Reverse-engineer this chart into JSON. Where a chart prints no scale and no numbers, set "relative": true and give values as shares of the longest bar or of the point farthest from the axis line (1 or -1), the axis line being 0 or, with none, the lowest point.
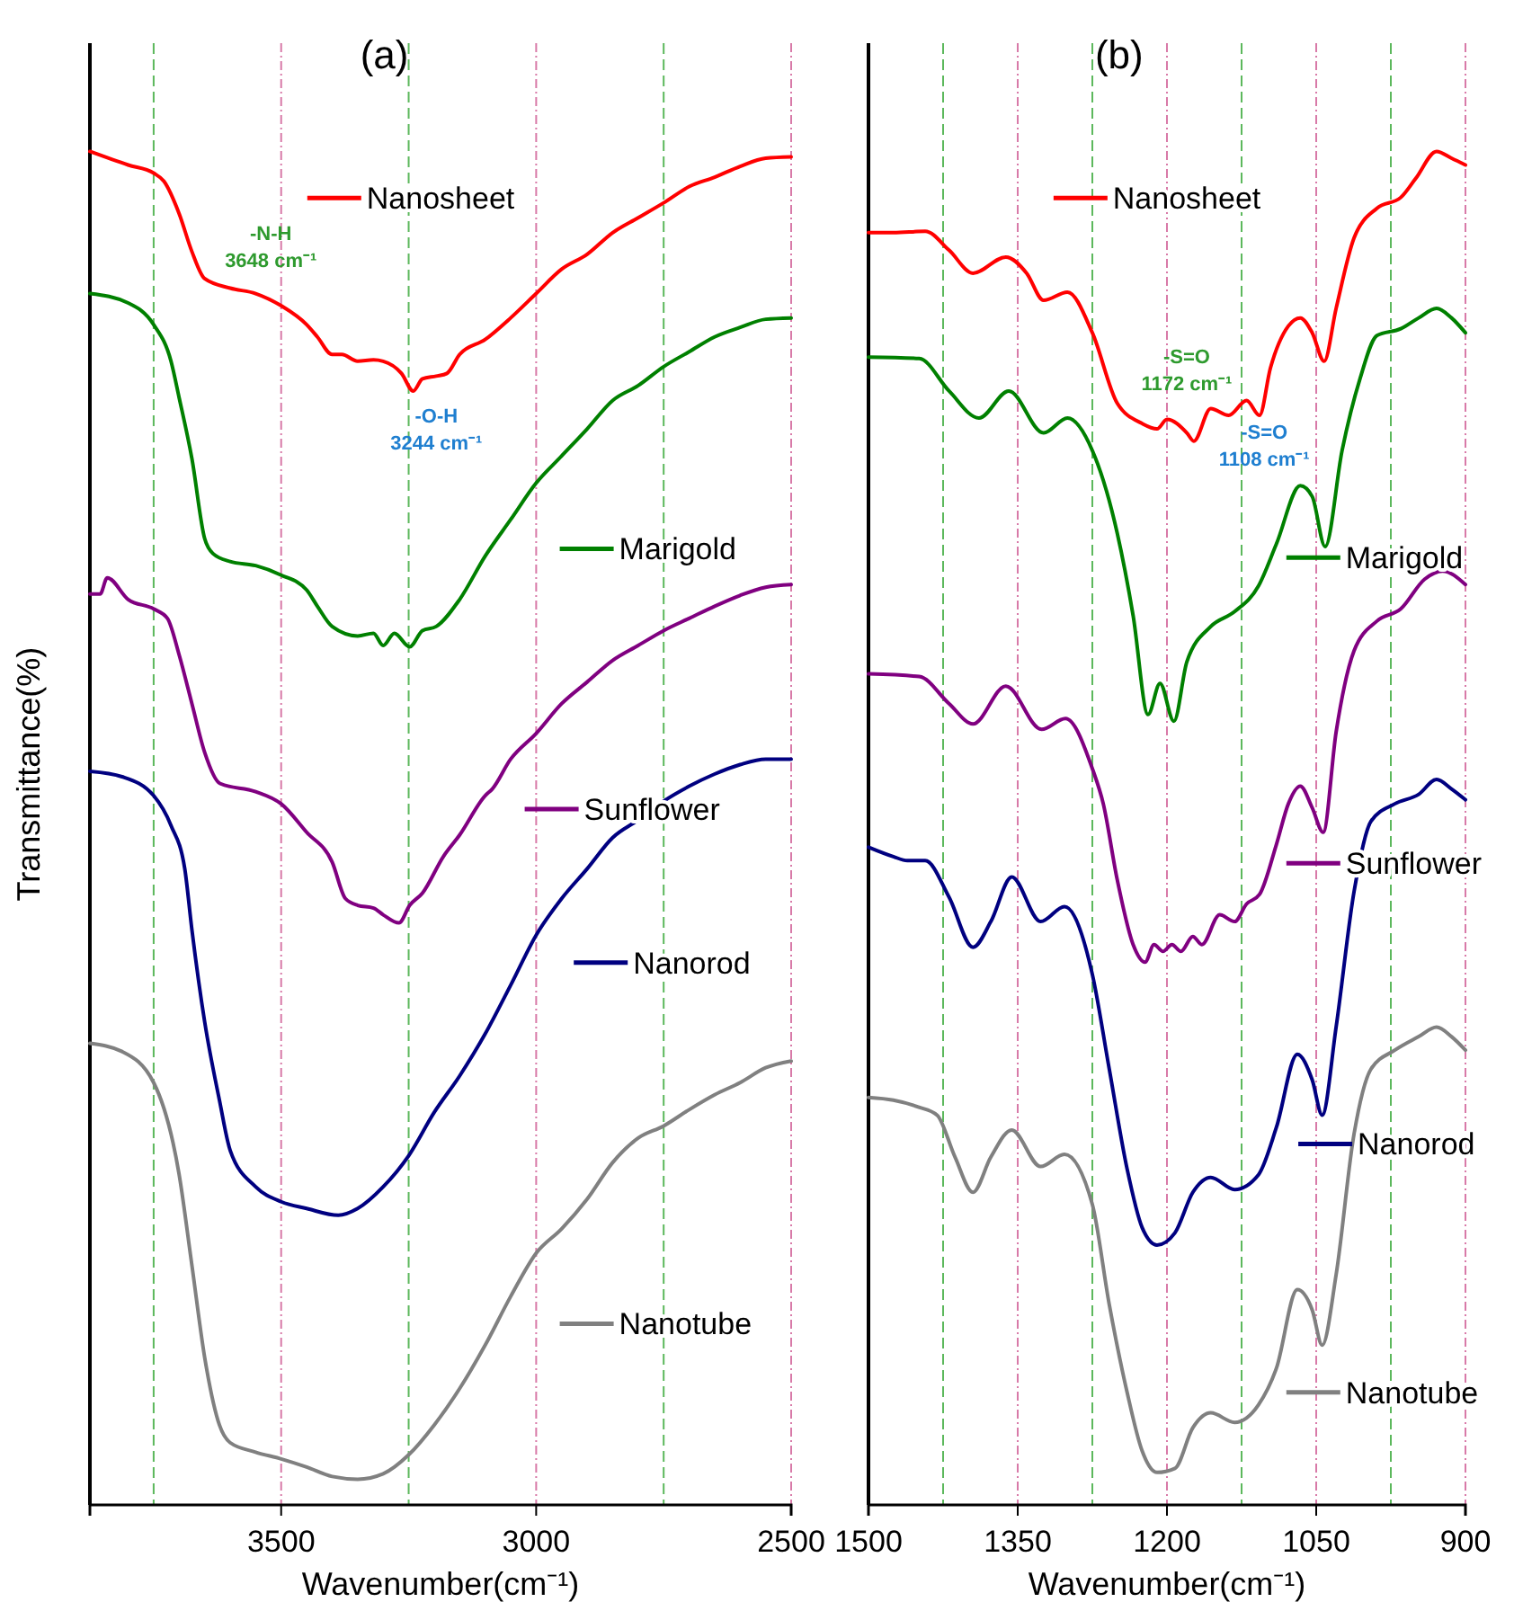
{
  "chart_data": [
    {
      "type": "line",
      "title": "(a)",
      "xlabel": "Wavenumber(cm⁻¹)",
      "ylabel": "Transmittance(%)",
      "relative": true,
      "tick_labels": "x",
      "grid": "x",
      "line_style": "solid",
      "xlim": [
        3875,
        2500
      ],
      "xticks": [
        3500,
        3000,
        2500
      ],
      "ref_lines": [
        {
          "axis": "x",
          "value": 3750,
          "color": "#5cb85c",
          "line_style": "dashed"
        },
        {
          "axis": "x",
          "value": 3250,
          "color": "#5cb85c",
          "line_style": "dashed"
        },
        {
          "axis": "x",
          "value": 2750,
          "color": "#5cb85c",
          "line_style": "dashed"
        }
      ],
      "annotations": [
        "-N-H\n3648 cm⁻¹",
        "-O-H\n3244 cm⁻¹"
      ],
      "legend": "right",
      "series": [
        {
          "name": "Nanosheet",
          "color": "#ff0000",
          "x": [
            3875,
            3800,
            3750,
            3730,
            3700,
            3675,
            3650,
            3600,
            3550,
            3500,
            3450,
            3429,
            3400,
            3381,
            3350,
            3319,
            3300,
            3264,
            3241,
            3223,
            3196,
            3175,
            3150,
            3100,
            3050,
            3000,
            2950,
            2900,
            2850,
            2800,
            2750,
            2700,
            2650,
            2600,
            2550,
            2500
          ],
          "values": [
            1.0,
            0.99,
            0.984,
            0.978,
            0.954,
            0.926,
            0.906,
            0.899,
            0.895,
            0.886,
            0.872,
            0.863,
            0.85,
            0.85,
            0.845,
            0.846,
            0.845,
            0.836,
            0.823,
            0.832,
            0.834,
            0.836,
            0.85,
            0.861,
            0.877,
            0.895,
            0.913,
            0.924,
            0.94,
            0.951,
            0.962,
            0.974,
            0.981,
            0.989,
            0.995,
            0.996
          ]
        },
        {
          "name": "Marigold",
          "color": "#008000",
          "x": [
            3875,
            3800,
            3750,
            3716,
            3700,
            3675,
            3650,
            3634,
            3600,
            3550,
            3500,
            3450,
            3429,
            3400,
            3350,
            3319,
            3300,
            3278,
            3248,
            3223,
            3196,
            3150,
            3100,
            3050,
            3000,
            2950,
            2900,
            2850,
            2800,
            2750,
            2700,
            2650,
            2600,
            2550,
            2500
          ],
          "values": [
            0.895,
            0.888,
            0.872,
            0.845,
            0.818,
            0.773,
            0.714,
            0.703,
            0.697,
            0.694,
            0.687,
            0.676,
            0.664,
            0.649,
            0.642,
            0.644,
            0.635,
            0.644,
            0.634,
            0.646,
            0.649,
            0.669,
            0.701,
            0.728,
            0.755,
            0.775,
            0.795,
            0.816,
            0.827,
            0.841,
            0.852,
            0.863,
            0.87,
            0.876,
            0.877
          ]
        },
        {
          "name": "Sunflower",
          "color": "#800080",
          "x": [
            3875,
            3855,
            3841,
            3800,
            3750,
            3723,
            3700,
            3675,
            3650,
            3620,
            3550,
            3500,
            3450,
            3400,
            3374,
            3350,
            3319,
            3300,
            3269,
            3248,
            3223,
            3182,
            3150,
            3100,
            3086,
            3050,
            3000,
            2950,
            2900,
            2850,
            2800,
            2750,
            2700,
            2650,
            2600,
            2550,
            2500
          ],
          "values": [
            0.673,
            0.673,
            0.685,
            0.669,
            0.662,
            0.655,
            0.628,
            0.592,
            0.556,
            0.533,
            0.527,
            0.518,
            0.497,
            0.475,
            0.448,
            0.443,
            0.441,
            0.436,
            0.43,
            0.443,
            0.452,
            0.479,
            0.495,
            0.524,
            0.529,
            0.551,
            0.57,
            0.592,
            0.608,
            0.624,
            0.635,
            0.646,
            0.655,
            0.664,
            0.672,
            0.678,
            0.68
          ]
        },
        {
          "name": "Nanorod",
          "color": "#000080",
          "x": [
            3875,
            3812,
            3750,
            3716,
            3689,
            3675,
            3650,
            3621,
            3600,
            3550,
            3500,
            3450,
            3388,
            3350,
            3300,
            3250,
            3200,
            3150,
            3100,
            3050,
            3000,
            2950,
            2900,
            2850,
            2800,
            2750,
            2700,
            2650,
            2600,
            2550,
            2500
          ],
          "values": [
            0.542,
            0.538,
            0.524,
            0.502,
            0.47,
            0.425,
            0.357,
            0.299,
            0.262,
            0.235,
            0.224,
            0.219,
            0.214,
            0.219,
            0.235,
            0.258,
            0.29,
            0.317,
            0.348,
            0.384,
            0.421,
            0.448,
            0.47,
            0.493,
            0.506,
            0.52,
            0.531,
            0.54,
            0.547,
            0.551,
            0.551
          ]
        },
        {
          "name": "Nanotube",
          "color": "#808080",
          "x": [
            3875,
            3812,
            3750,
            3700,
            3675,
            3650,
            3621,
            3600,
            3550,
            3500,
            3450,
            3400,
            3350,
            3300,
            3250,
            3200,
            3150,
            3100,
            3050,
            3000,
            2950,
            2900,
            2850,
            2800,
            2750,
            2700,
            2650,
            2600,
            2550,
            2500
          ],
          "values": [
            0.341,
            0.335,
            0.312,
            0.244,
            0.177,
            0.109,
            0.059,
            0.046,
            0.039,
            0.034,
            0.028,
            0.021,
            0.019,
            0.023,
            0.037,
            0.059,
            0.086,
            0.118,
            0.154,
            0.186,
            0.204,
            0.226,
            0.253,
            0.271,
            0.28,
            0.292,
            0.303,
            0.312,
            0.323,
            0.328
          ]
        }
      ]
    },
    {
      "type": "line",
      "title": "(b)",
      "xlabel": "Wavenumber(cm⁻¹)",
      "relative": true,
      "tick_labels": "x",
      "grid": "x",
      "line_style": "solid",
      "xlim": [
        1500,
        900
      ],
      "xticks": [
        1500,
        1350,
        1200,
        1050,
        900
      ],
      "ref_lines": [
        {
          "axis": "x",
          "value": 1425,
          "color": "#5cb85c",
          "line_style": "dashed"
        },
        {
          "axis": "x",
          "value": 1275,
          "color": "#5cb85c",
          "line_style": "dashed"
        },
        {
          "axis": "x",
          "value": 1125,
          "color": "#5cb85c",
          "line_style": "dashed"
        },
        {
          "axis": "x",
          "value": 975,
          "color": "#5cb85c",
          "line_style": "dashed"
        }
      ],
      "annotations": [
        "-S=O\n1172 cm⁻¹",
        "-S=O\n1108 cm⁻¹"
      ],
      "legend": "right",
      "series": [
        {
          "name": "Nanosheet",
          "color": "#ff0000",
          "x": [
            1500,
            1475,
            1443,
            1419,
            1395,
            1362,
            1341,
            1324,
            1300,
            1275,
            1250,
            1225,
            1210,
            1200,
            1180,
            1173,
            1156,
            1138,
            1120,
            1107,
            1096,
            1078,
            1066,
            1054,
            1042,
            1030,
            1012,
            989,
            965,
            950,
            929,
            914,
            900
          ],
          "values": [
            0.94,
            0.94,
            0.941,
            0.927,
            0.91,
            0.922,
            0.91,
            0.89,
            0.896,
            0.866,
            0.814,
            0.799,
            0.795,
            0.802,
            0.792,
            0.786,
            0.81,
            0.805,
            0.816,
            0.805,
            0.84,
            0.871,
            0.877,
            0.866,
            0.845,
            0.884,
            0.936,
            0.958,
            0.966,
            0.98,
            1.0,
            0.995,
            0.99
          ]
        },
        {
          "name": "Marigold",
          "color": "#008000",
          "x": [
            1500,
            1449,
            1419,
            1389,
            1359,
            1324,
            1300,
            1275,
            1250,
            1234,
            1219,
            1207,
            1193,
            1180,
            1156,
            1132,
            1108,
            1090,
            1066,
            1054,
            1041,
            1024,
            1006,
            989,
            965,
            947,
            929,
            914,
            900
          ],
          "values": [
            0.848,
            0.847,
            0.823,
            0.803,
            0.823,
            0.792,
            0.803,
            0.779,
            0.718,
            0.657,
            0.584,
            0.607,
            0.579,
            0.623,
            0.649,
            0.66,
            0.679,
            0.71,
            0.753,
            0.745,
            0.708,
            0.779,
            0.832,
            0.864,
            0.869,
            0.877,
            0.884,
            0.877,
            0.866
          ]
        },
        {
          "name": "Sunflower",
          "color": "#800080",
          "x": [
            1500,
            1449,
            1419,
            1395,
            1362,
            1326,
            1302,
            1275,
            1264,
            1250,
            1234,
            1222,
            1213,
            1204,
            1195,
            1186,
            1174,
            1165,
            1147,
            1132,
            1120,
            1107,
            1090,
            1078,
            1066,
            1054,
            1043,
            1030,
            1012,
            989,
            965,
            941,
            923,
            900
          ],
          "values": [
            0.614,
            0.612,
            0.592,
            0.577,
            0.605,
            0.573,
            0.581,
            0.544,
            0.518,
            0.462,
            0.414,
            0.401,
            0.414,
            0.409,
            0.414,
            0.409,
            0.42,
            0.414,
            0.436,
            0.431,
            0.444,
            0.451,
            0.488,
            0.518,
            0.531,
            0.515,
            0.497,
            0.571,
            0.631,
            0.653,
            0.662,
            0.684,
            0.69,
            0.68
          ]
        },
        {
          "name": "Nanorod",
          "color": "#000080",
          "x": [
            1500,
            1475,
            1461,
            1443,
            1419,
            1395,
            1377,
            1356,
            1327,
            1303,
            1275,
            1258,
            1240,
            1225,
            1210,
            1192,
            1174,
            1156,
            1132,
            1108,
            1090,
            1069,
            1054,
            1044,
            1030,
            1012,
            995,
            971,
            947,
            929,
            914,
            900
          ],
          "values": [
            0.486,
            0.479,
            0.476,
            0.476,
            0.449,
            0.412,
            0.431,
            0.464,
            0.431,
            0.442,
            0.392,
            0.322,
            0.248,
            0.205,
            0.192,
            0.201,
            0.231,
            0.242,
            0.233,
            0.244,
            0.279,
            0.333,
            0.314,
            0.288,
            0.353,
            0.453,
            0.505,
            0.518,
            0.525,
            0.536,
            0.529,
            0.521
          ]
        },
        {
          "name": "Nanotube",
          "color": "#808080",
          "x": [
            1500,
            1475,
            1450,
            1431,
            1413,
            1395,
            1377,
            1356,
            1327,
            1303,
            1275,
            1258,
            1240,
            1225,
            1210,
            1192,
            1174,
            1156,
            1132,
            1108,
            1090,
            1069,
            1054,
            1044,
            1030,
            1012,
            995,
            971,
            947,
            929,
            914,
            900
          ],
          "values": [
            0.301,
            0.299,
            0.294,
            0.288,
            0.257,
            0.231,
            0.257,
            0.277,
            0.25,
            0.259,
            0.222,
            0.148,
            0.083,
            0.04,
            0.024,
            0.027,
            0.057,
            0.068,
            0.061,
            0.074,
            0.101,
            0.159,
            0.144,
            0.118,
            0.17,
            0.274,
            0.322,
            0.336,
            0.346,
            0.353,
            0.346,
            0.336
          ]
        }
      ]
    }
  ]
}
